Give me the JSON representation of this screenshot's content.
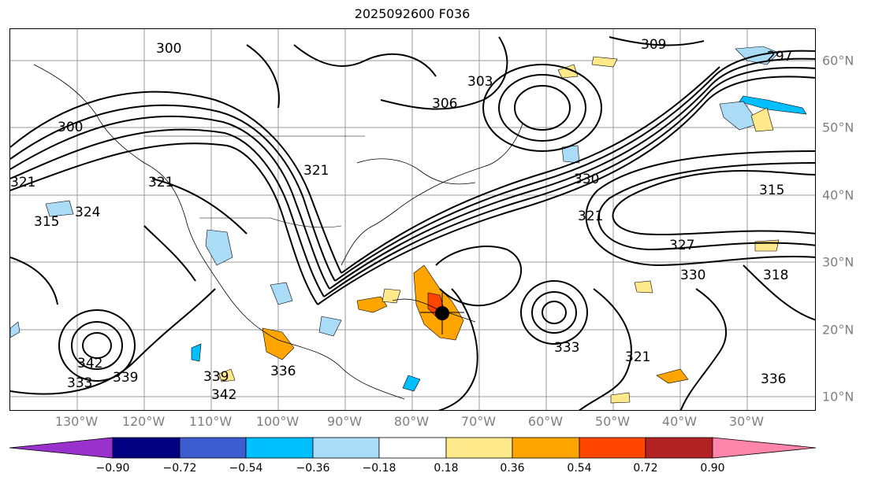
{
  "title": "2025092600 F036",
  "lon_labels": [
    "130°W",
    "120°W",
    "110°W",
    "100°W",
    "90°W",
    "80°W",
    "70°W",
    "60°W",
    "50°W",
    "40°W",
    "30°W"
  ],
  "lat_labels": [
    "60°N",
    "50°N",
    "40°N",
    "30°N",
    "20°N",
    "10°N"
  ],
  "contour_labels": [
    "300",
    "303",
    "306",
    "309",
    "297",
    "315",
    "318",
    "321",
    "324",
    "327",
    "330",
    "333",
    "336",
    "339",
    "342"
  ],
  "colorbar": {
    "ticks": [
      "−0.90",
      "−0.72",
      "−0.54",
      "−0.36",
      "−0.18",
      "0.18",
      "0.36",
      "0.54",
      "0.72",
      "0.90"
    ],
    "colors": [
      "#9932cc",
      "#000080",
      "#3d5ccf",
      "#00bfff",
      "#aadcf8",
      "#ffffff",
      "#ffe98a",
      "#ffa500",
      "#ff4500",
      "#b22222",
      "#ff85aa"
    ]
  },
  "colors": {
    "contour": "#000000",
    "tick_labels": "#7f7f7f",
    "marker": "#000000"
  }
}
